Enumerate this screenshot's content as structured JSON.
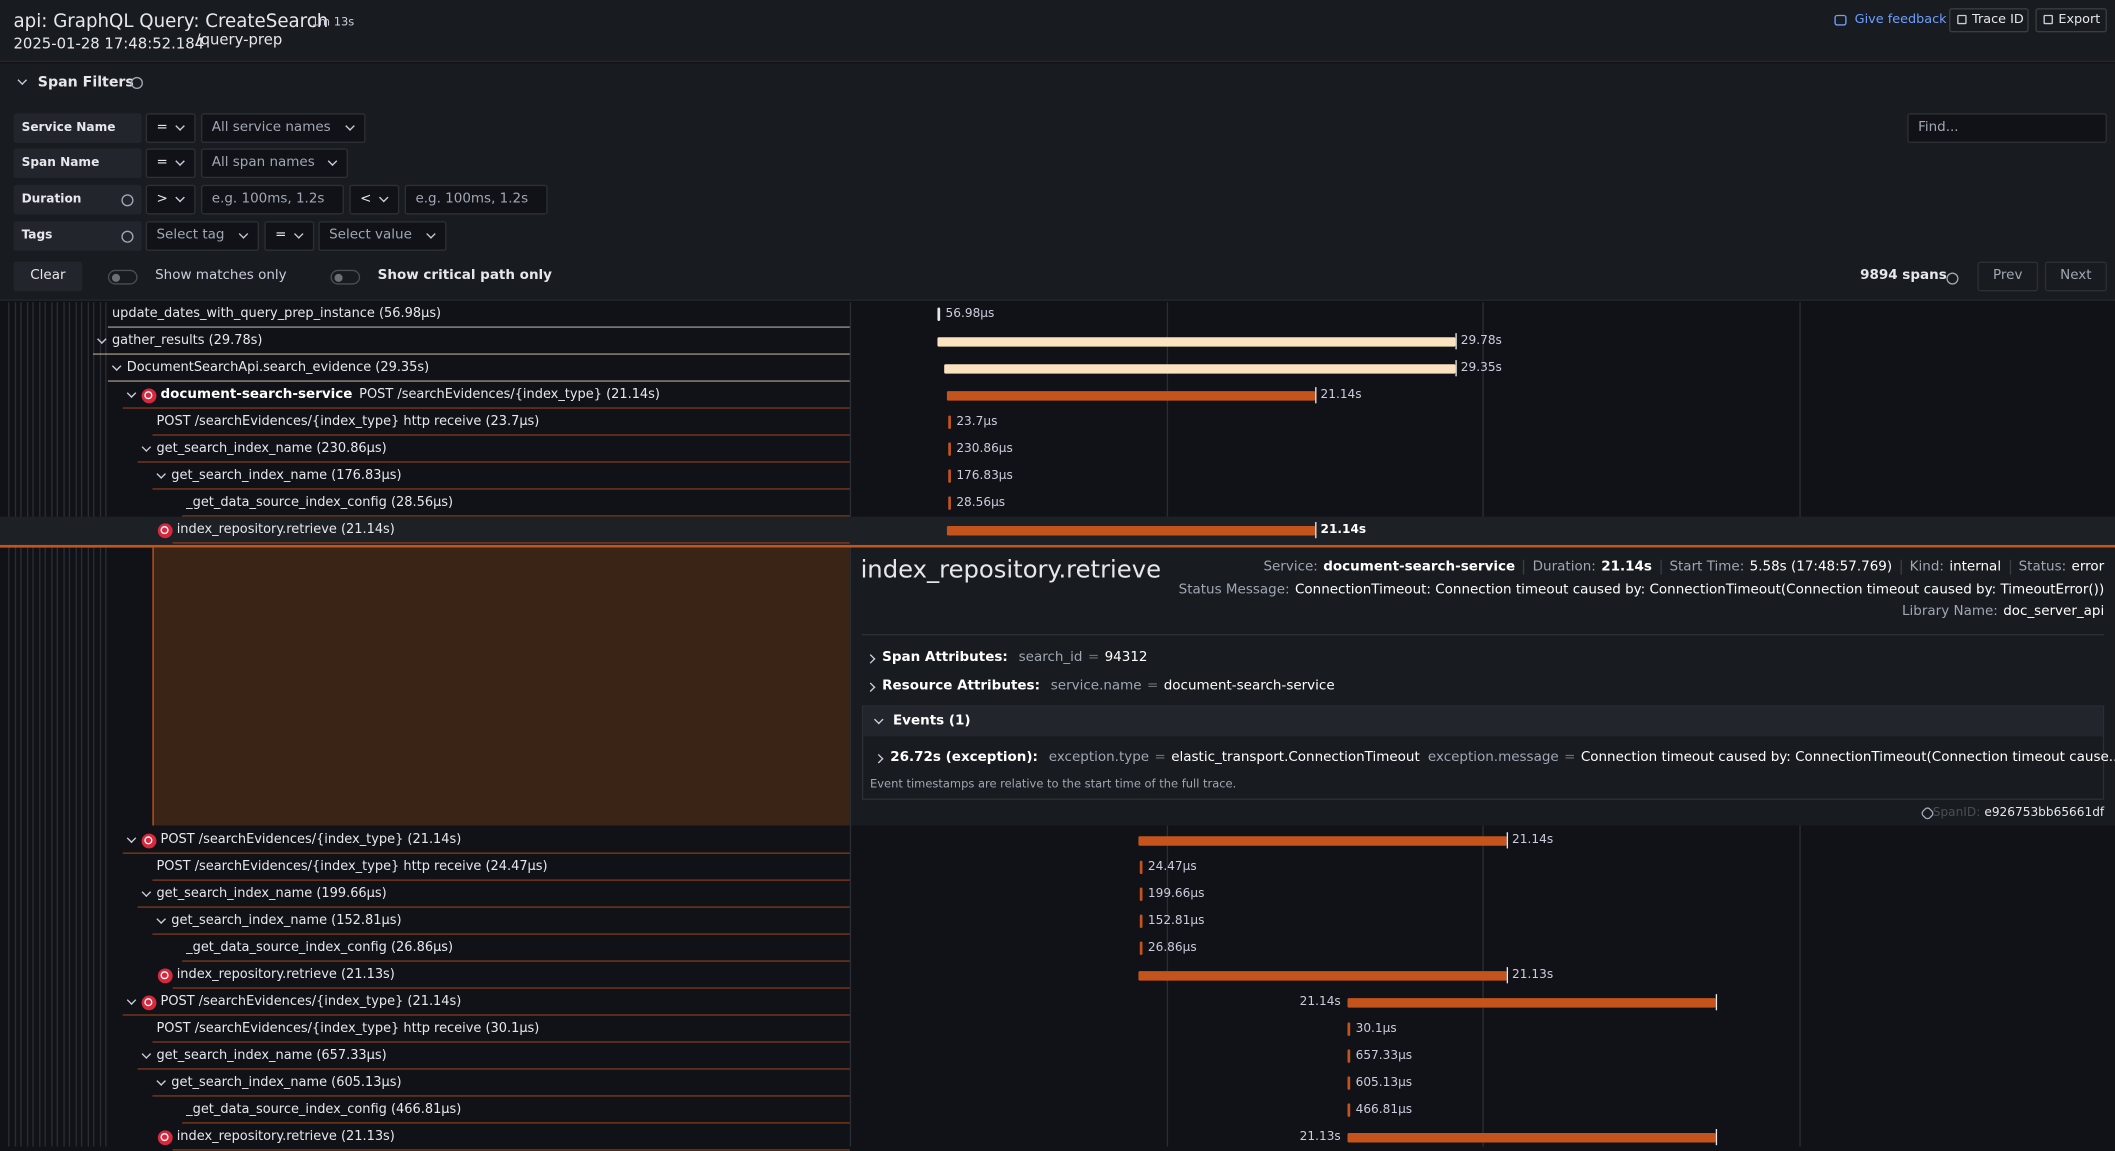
{
  "header": {
    "title": "api: GraphQL Query: CreateSearch",
    "duration": "1m 13s",
    "timestamp": "2025-01-28 17:48:52.184",
    "path": "/query-prep",
    "feedback": "Give feedback",
    "trace_id": "Trace ID",
    "export": "Export"
  },
  "filters": {
    "title": "Span Filters",
    "find": "Find...",
    "rows": [
      {
        "label": "Service Name",
        "parts": [
          "=",
          "All service names"
        ]
      },
      {
        "label": "Span Name",
        "parts": [
          "=",
          "All span names"
        ]
      },
      {
        "label": "Duration",
        "parts": [
          ">",
          "e.g. 100ms, 1.2s",
          "<",
          "e.g. 100ms, 1.2s"
        ]
      },
      {
        "label": "Tags",
        "parts": [
          "Select tag",
          "=",
          "Select value"
        ]
      }
    ],
    "clear": "Clear",
    "matches_only": "Show matches only",
    "critical_path": "Show critical path only",
    "span_count": "9894 spans",
    "prev": "Prev",
    "next": "Next"
  },
  "spans": [
    {
      "label": "update_dates_with_query_prep_instance (56.98µs)",
      "duration": "56.98µs"
    },
    {
      "label": "gather_results (29.78s)",
      "duration": "29.78s"
    },
    {
      "label": "DocumentSearchApi.search_evidence (29.35s)",
      "duration": "29.35s"
    },
    {
      "service": "document-search-service",
      "label": "POST /searchEvidences/{index_type} (21.14s)",
      "duration": "21.14s"
    },
    {
      "label": "POST /searchEvidences/{index_type} http receive (23.7µs)",
      "duration": "23.7µs"
    },
    {
      "label": "get_search_index_name (230.86µs)",
      "duration": "230.86µs"
    },
    {
      "label": "get_search_index_name (176.83µs)",
      "duration": "176.83µs"
    },
    {
      "label": "_get_data_source_index_config (28.56µs)",
      "duration": "28.56µs"
    },
    {
      "label": "index_repository.retrieve (21.14s)",
      "duration": "21.14s"
    },
    {
      "label": "POST /searchEvidences/{index_type} (21.14s)",
      "duration": "21.14s"
    },
    {
      "label": "POST /searchEvidences/{index_type} http receive (24.47µs)",
      "duration": "24.47µs"
    },
    {
      "label": "get_search_index_name (199.66µs)",
      "duration": "199.66µs"
    },
    {
      "label": "get_search_index_name (152.81µs)",
      "duration": "152.81µs"
    },
    {
      "label": "_get_data_source_index_config (26.86µs)",
      "duration": "26.86µs"
    },
    {
      "label": "index_repository.retrieve (21.13s)",
      "duration": "21.13s"
    },
    {
      "label": "POST /searchEvidences/{index_type} (21.14s)",
      "duration": "21.14s"
    },
    {
      "label": "POST /searchEvidences/{index_type} http receive (30.1µs)",
      "duration": "30.1µs"
    },
    {
      "label": "get_search_index_name (657.33µs)",
      "duration": "657.33µs"
    },
    {
      "label": "get_search_index_name (605.13µs)",
      "duration": "605.13µs"
    },
    {
      "label": "_get_data_source_index_config (466.81µs)",
      "duration": "466.81µs"
    },
    {
      "label": "index_repository.retrieve (21.13s)",
      "duration": "21.13s"
    }
  ],
  "detail": {
    "title": "index_repository.retrieve",
    "fields": [
      {
        "label": "Service:",
        "value": "document-search-service"
      },
      {
        "label": "Duration:",
        "value": "21.14s"
      },
      {
        "label": "Start Time:",
        "value": "5.58s (17:48:57.769)"
      },
      {
        "label": "Kind:",
        "value": "internal"
      },
      {
        "label": "Status:",
        "value": "error"
      }
    ],
    "status_message": {
      "label": "Status Message:",
      "value": "ConnectionTimeout: Connection timeout caused by: ConnectionTimeout(Connection timeout caused by: TimeoutError())"
    },
    "library": {
      "label": "Library Name:",
      "value": "doc_server_api"
    },
    "span_attributes": {
      "label": "Span Attributes:",
      "key": "search_id",
      "eq": "=",
      "value": "94312"
    },
    "resource_attributes": {
      "label": "Resource Attributes:",
      "key": "service.name",
      "eq": "=",
      "value": "document-search-service"
    },
    "events": {
      "title": "Events (1)",
      "event": "26.72s (exception):",
      "type_key": "exception.type",
      "type_eq": "=",
      "type_value": "elastic_transport.ConnectionTimeout",
      "msg_key": "exception.message",
      "msg_eq": "=",
      "msg_value": "Connection timeout caused by: ConnectionTimeout(Connection timeout cause...",
      "note": "Event timestamps are relative to the start time of the full trace."
    },
    "span_id_label": "SpanID:",
    "span_id": "e926753bb65661df"
  }
}
